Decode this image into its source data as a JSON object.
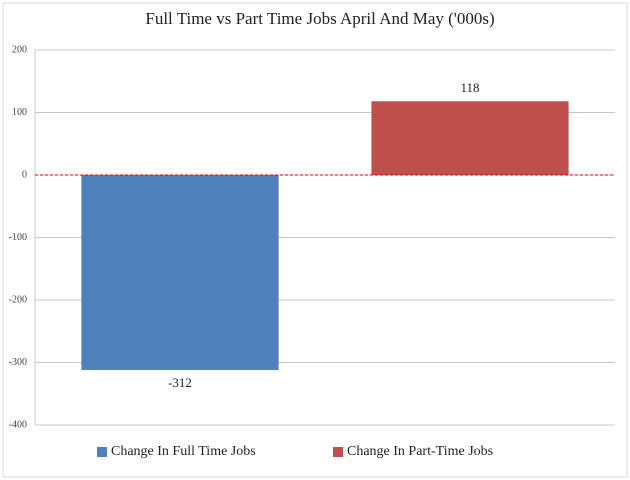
{
  "chart_data": {
    "type": "bar",
    "title": "Full Time vs Part Time Jobs April And May ('000s)",
    "categories": [
      "Change In Full Time Jobs",
      "Change In Part-Time Jobs"
    ],
    "values": [
      -312,
      118
    ],
    "colors": [
      "#4f81bd",
      "#c0504d"
    ],
    "ylim": [
      -400,
      200
    ],
    "yticks": [
      -400,
      -300,
      -200,
      -100,
      0,
      100,
      200
    ],
    "grid": true,
    "legend": "bottom"
  }
}
